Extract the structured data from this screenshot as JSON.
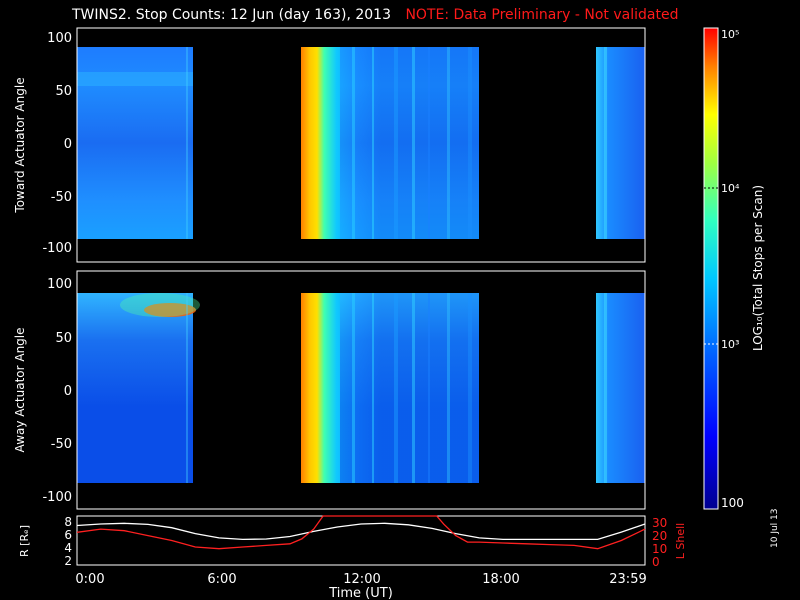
{
  "header": {
    "title": "TWINS2. Stop Counts: 12 Jun (day 163), 2013",
    "note": "NOTE: Data Preliminary - Not validated"
  },
  "datestamp": "10 Jul 13",
  "colors": {
    "note": "#ff1a1a",
    "r_line": "#ffffff",
    "l_line": "#ff2020",
    "background": "#000000"
  },
  "chart_data": [
    {
      "type": "heatmap",
      "panel": "top",
      "ylabel": "Toward Actuator Angle",
      "xlim": [
        "0:00",
        "23:59"
      ],
      "ylim": [
        -110,
        110
      ],
      "yticks": [
        "100",
        "50",
        "0",
        "-50",
        "-100"
      ],
      "data_ylim": [
        -90,
        90
      ],
      "coverage_hours": [
        [
          0.0,
          4.75
        ],
        [
          9.4,
          16.75
        ],
        [
          22.0,
          23.99
        ]
      ],
      "colorscale": "log"
    },
    {
      "type": "heatmap",
      "panel": "bottom",
      "ylabel": "Away Actuator Angle",
      "xlim": [
        "0:00",
        "23:59"
      ],
      "ylim": [
        -110,
        110
      ],
      "yticks": [
        "100",
        "50",
        "0",
        "-50",
        "-100"
      ],
      "data_ylim": [
        -90,
        90
      ],
      "coverage_hours": [
        [
          0.0,
          4.75
        ],
        [
          9.4,
          16.75
        ],
        [
          22.0,
          23.99
        ]
      ],
      "colorscale": "log"
    },
    {
      "type": "line",
      "panel": "orbit",
      "ylabel_left": "R [Rₑ]",
      "ylabel_right": "L Shell",
      "xlabel": "Time (UT)",
      "xticks": [
        "0:00",
        "6:00",
        "12:00",
        "18:00",
        "23:59"
      ],
      "yticks_left": [
        "2",
        "4",
        "6",
        "8"
      ],
      "yticks_right": [
        "0",
        "10",
        "20",
        "30"
      ],
      "ylim_left": [
        1.5,
        8.2
      ],
      "ylim_right": [
        0,
        30
      ],
      "series": [
        {
          "name": "R",
          "x": [
            0,
            1,
            2,
            3,
            4,
            5,
            6,
            7,
            8,
            9,
            10,
            11,
            12,
            13,
            14,
            15,
            16,
            17,
            18,
            19,
            20,
            21,
            22,
            23,
            24
          ],
          "y": [
            6.9,
            7.1,
            7.2,
            7.05,
            6.6,
            5.8,
            5.2,
            5.0,
            5.05,
            5.4,
            6.1,
            6.7,
            7.1,
            7.2,
            7.0,
            6.5,
            5.8,
            5.2,
            5.0,
            5.0,
            5.0,
            5.0,
            5.0,
            6.0,
            7.1
          ]
        },
        {
          "name": "L",
          "x": [
            0,
            1,
            2,
            3,
            4,
            5,
            6,
            7,
            8,
            9,
            9.5,
            10,
            10.4,
            15.2,
            15.5,
            16,
            16.5,
            17,
            18,
            19,
            20,
            21,
            22,
            23,
            24
          ],
          "y": [
            20,
            22,
            21,
            18,
            15,
            11,
            10,
            11,
            12,
            13,
            16,
            22,
            30,
            30,
            25,
            18,
            14,
            14,
            13.5,
            13,
            12.5,
            12,
            10,
            15,
            22
          ]
        }
      ]
    }
  ],
  "colorbar": {
    "label": "LOG₁₀(Total Stops per Scan)",
    "ticks": [
      "10⁵",
      "10⁴",
      "10³",
      "100"
    ]
  }
}
